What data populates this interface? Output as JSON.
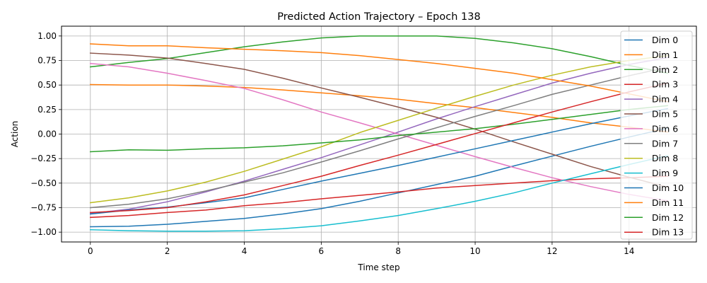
{
  "chart_data": {
    "type": "line",
    "title": "Predicted Action Trajectory – Epoch 138",
    "xlabel": "Time step",
    "ylabel": "Action",
    "xlim": [
      -0.75,
      15.75
    ],
    "ylim": [
      -1.1,
      1.1
    ],
    "xticks": [
      0,
      2,
      4,
      6,
      8,
      10,
      12,
      14
    ],
    "yticks": [
      -1.0,
      -0.75,
      -0.5,
      -0.25,
      0.0,
      0.25,
      0.5,
      0.75,
      1.0
    ],
    "ytick_labels": [
      "−1.00",
      "−0.75",
      "−0.50",
      "−0.25",
      "0.00",
      "0.25",
      "0.50",
      "0.75",
      "1.00"
    ],
    "grid": true,
    "legend_position": "right",
    "x": [
      0,
      1,
      2,
      3,
      4,
      5,
      6,
      7,
      8,
      9,
      10,
      11,
      12,
      13,
      14,
      15
    ],
    "series": [
      {
        "name": "Dim 0",
        "color": "#1f77b4",
        "values": [
          -0.945,
          -0.94,
          -0.92,
          -0.89,
          -0.86,
          -0.815,
          -0.76,
          -0.685,
          -0.6,
          -0.515,
          -0.43,
          -0.325,
          -0.225,
          -0.125,
          -0.03,
          0.06
        ]
      },
      {
        "name": "Dim 1",
        "color": "#ff7f0e",
        "values": [
          0.505,
          0.5,
          0.5,
          0.49,
          0.475,
          0.45,
          0.42,
          0.39,
          0.355,
          0.31,
          0.27,
          0.22,
          0.17,
          0.115,
          0.07,
          0.02
        ]
      },
      {
        "name": "Dim 2",
        "color": "#2ca02c",
        "values": [
          0.685,
          0.73,
          0.77,
          0.83,
          0.89,
          0.94,
          0.98,
          1.0,
          1.0,
          1.0,
          0.975,
          0.93,
          0.87,
          0.79,
          0.7,
          0.62
        ]
      },
      {
        "name": "Dim 3",
        "color": "#d62728",
        "values": [
          -0.85,
          -0.83,
          -0.8,
          -0.775,
          -0.73,
          -0.7,
          -0.66,
          -0.625,
          -0.59,
          -0.55,
          -0.525,
          -0.5,
          -0.475,
          -0.455,
          -0.445,
          -0.43
        ]
      },
      {
        "name": "Dim 4",
        "color": "#9467bd",
        "values": [
          -0.81,
          -0.765,
          -0.69,
          -0.59,
          -0.48,
          -0.36,
          -0.24,
          -0.11,
          0.02,
          0.155,
          0.28,
          0.4,
          0.52,
          0.62,
          0.71,
          0.78
        ]
      },
      {
        "name": "Dim 5",
        "color": "#8c564b",
        "values": [
          0.825,
          0.805,
          0.775,
          0.72,
          0.66,
          0.57,
          0.47,
          0.375,
          0.275,
          0.17,
          0.05,
          -0.08,
          -0.205,
          -0.33,
          -0.44,
          -0.54
        ]
      },
      {
        "name": "Dim 6",
        "color": "#e377c2",
        "values": [
          0.72,
          0.685,
          0.62,
          0.545,
          0.465,
          0.35,
          0.225,
          0.115,
          0.0,
          -0.115,
          -0.23,
          -0.34,
          -0.445,
          -0.535,
          -0.615,
          -0.68
        ]
      },
      {
        "name": "Dim 7",
        "color": "#7f7f7f",
        "values": [
          -0.75,
          -0.715,
          -0.66,
          -0.58,
          -0.49,
          -0.395,
          -0.285,
          -0.17,
          -0.05,
          0.065,
          0.18,
          0.29,
          0.405,
          0.5,
          0.595,
          0.68
        ]
      },
      {
        "name": "Dim 8",
        "color": "#bcbd22",
        "values": [
          -0.7,
          -0.65,
          -0.58,
          -0.49,
          -0.38,
          -0.255,
          -0.13,
          0.015,
          0.14,
          0.265,
          0.385,
          0.5,
          0.6,
          0.685,
          0.75,
          0.8
        ]
      },
      {
        "name": "Dim 9",
        "color": "#17becf",
        "values": [
          -0.975,
          -0.985,
          -0.99,
          -0.99,
          -0.985,
          -0.965,
          -0.935,
          -0.885,
          -0.83,
          -0.76,
          -0.685,
          -0.6,
          -0.5,
          -0.405,
          -0.31,
          -0.22
        ]
      },
      {
        "name": "Dim 10",
        "color": "#1f77b4",
        "values": [
          -0.815,
          -0.775,
          -0.745,
          -0.7,
          -0.65,
          -0.565,
          -0.48,
          -0.4,
          -0.32,
          -0.235,
          -0.15,
          -0.065,
          0.02,
          0.105,
          0.185,
          0.26
        ]
      },
      {
        "name": "Dim 11",
        "color": "#ff7f0e",
        "values": [
          0.92,
          0.9,
          0.9,
          0.88,
          0.865,
          0.85,
          0.83,
          0.8,
          0.76,
          0.72,
          0.67,
          0.62,
          0.555,
          0.49,
          0.41,
          0.33
        ]
      },
      {
        "name": "Dim 12",
        "color": "#2ca02c",
        "values": [
          -0.18,
          -0.16,
          -0.165,
          -0.15,
          -0.14,
          -0.12,
          -0.09,
          -0.06,
          -0.015,
          0.02,
          0.055,
          0.1,
          0.15,
          0.2,
          0.25,
          0.29
        ]
      },
      {
        "name": "Dim 13",
        "color": "#d62728",
        "values": [
          -0.8,
          -0.78,
          -0.75,
          -0.69,
          -0.62,
          -0.525,
          -0.43,
          -0.32,
          -0.215,
          -0.105,
          0.005,
          0.115,
          0.225,
          0.33,
          0.43,
          0.52
        ]
      }
    ]
  }
}
